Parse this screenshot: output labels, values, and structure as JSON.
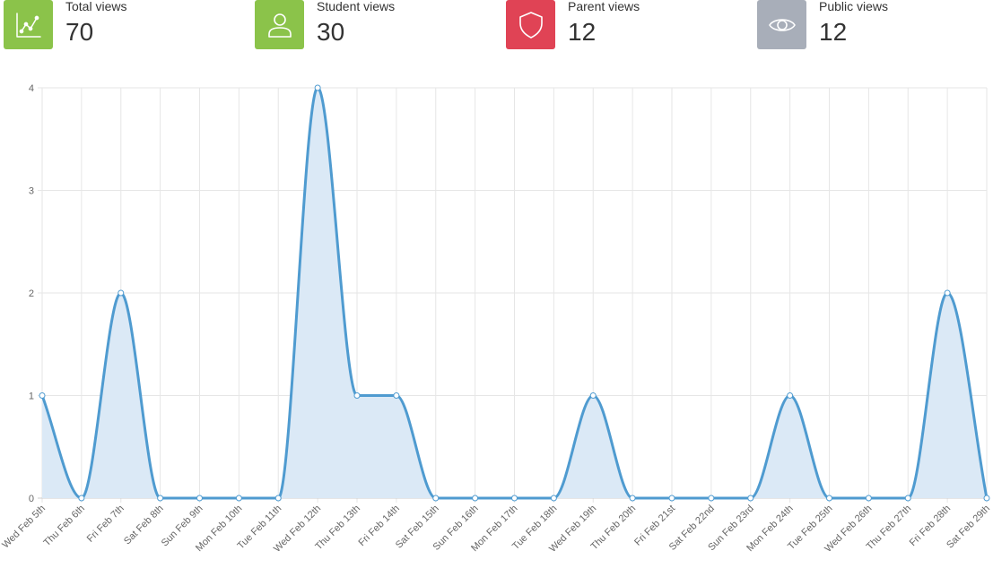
{
  "stats": [
    {
      "label": "Total views",
      "value": "70",
      "color": "#8bc34a",
      "icon": "line-chart-icon"
    },
    {
      "label": "Student views",
      "value": "30",
      "color": "#8bc34a",
      "icon": "user-icon"
    },
    {
      "label": "Parent views",
      "value": "12",
      "color": "#e04355",
      "icon": "shield-icon"
    },
    {
      "label": "Public views",
      "value": "12",
      "color": "#a8aeb9",
      "icon": "eye-icon"
    }
  ],
  "chart_data": {
    "type": "area",
    "categories": [
      "Wed Feb 5th",
      "Thu Feb 6th",
      "Fri Feb 7th",
      "Sat Feb 8th",
      "Sun Feb 9th",
      "Mon Feb 10th",
      "Tue Feb 11th",
      "Wed Feb 12th",
      "Thu Feb 13th",
      "Fri Feb 14th",
      "Sat Feb 15th",
      "Sun Feb 16th",
      "Mon Feb 17th",
      "Tue Feb 18th",
      "Wed Feb 19th",
      "Thu Feb 20th",
      "Fri Feb 21st",
      "Sat Feb 22nd",
      "Sun Feb 23rd",
      "Mon Feb 24th",
      "Tue Feb 25th",
      "Wed Feb 26th",
      "Thu Feb 27th",
      "Fri Feb 28th",
      "Sat Feb 29th"
    ],
    "series": [
      {
        "values": [
          1,
          0,
          2,
          0,
          0,
          0,
          0,
          4,
          1,
          1,
          0,
          0,
          0,
          0,
          1,
          0,
          0,
          0,
          0,
          1,
          0,
          0,
          0,
          2,
          0
        ]
      }
    ],
    "ylim": [
      0,
      4
    ],
    "yticks": [
      "0",
      "1",
      "2",
      "3",
      "4"
    ],
    "grid": true,
    "line_color": "#4f9bd0",
    "fill_color": "#dbe9f6"
  }
}
